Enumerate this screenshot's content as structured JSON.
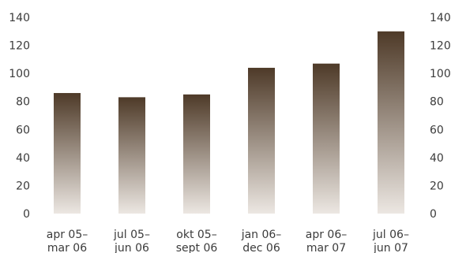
{
  "chart_data": {
    "type": "bar",
    "categories": [
      [
        "apr 05–",
        "mar 06"
      ],
      [
        "jul 05–",
        "jun 06"
      ],
      [
        "okt 05–",
        "sept 06"
      ],
      [
        "jan 06–",
        "dec 06"
      ],
      [
        "apr 06–",
        "mar 07"
      ],
      [
        "jul 06–",
        "jun 07"
      ]
    ],
    "values": [
      86,
      83,
      85,
      104,
      107,
      130
    ],
    "ylim": [
      0,
      140
    ],
    "yticks": [
      0,
      20,
      40,
      60,
      80,
      100,
      120,
      140
    ],
    "y_axis_sides": [
      "left",
      "right"
    ],
    "grid": false,
    "bar_gradient": {
      "top": "#4e3a28",
      "bottom": "#ece7e2"
    },
    "text_color": "#3b3b3b"
  }
}
